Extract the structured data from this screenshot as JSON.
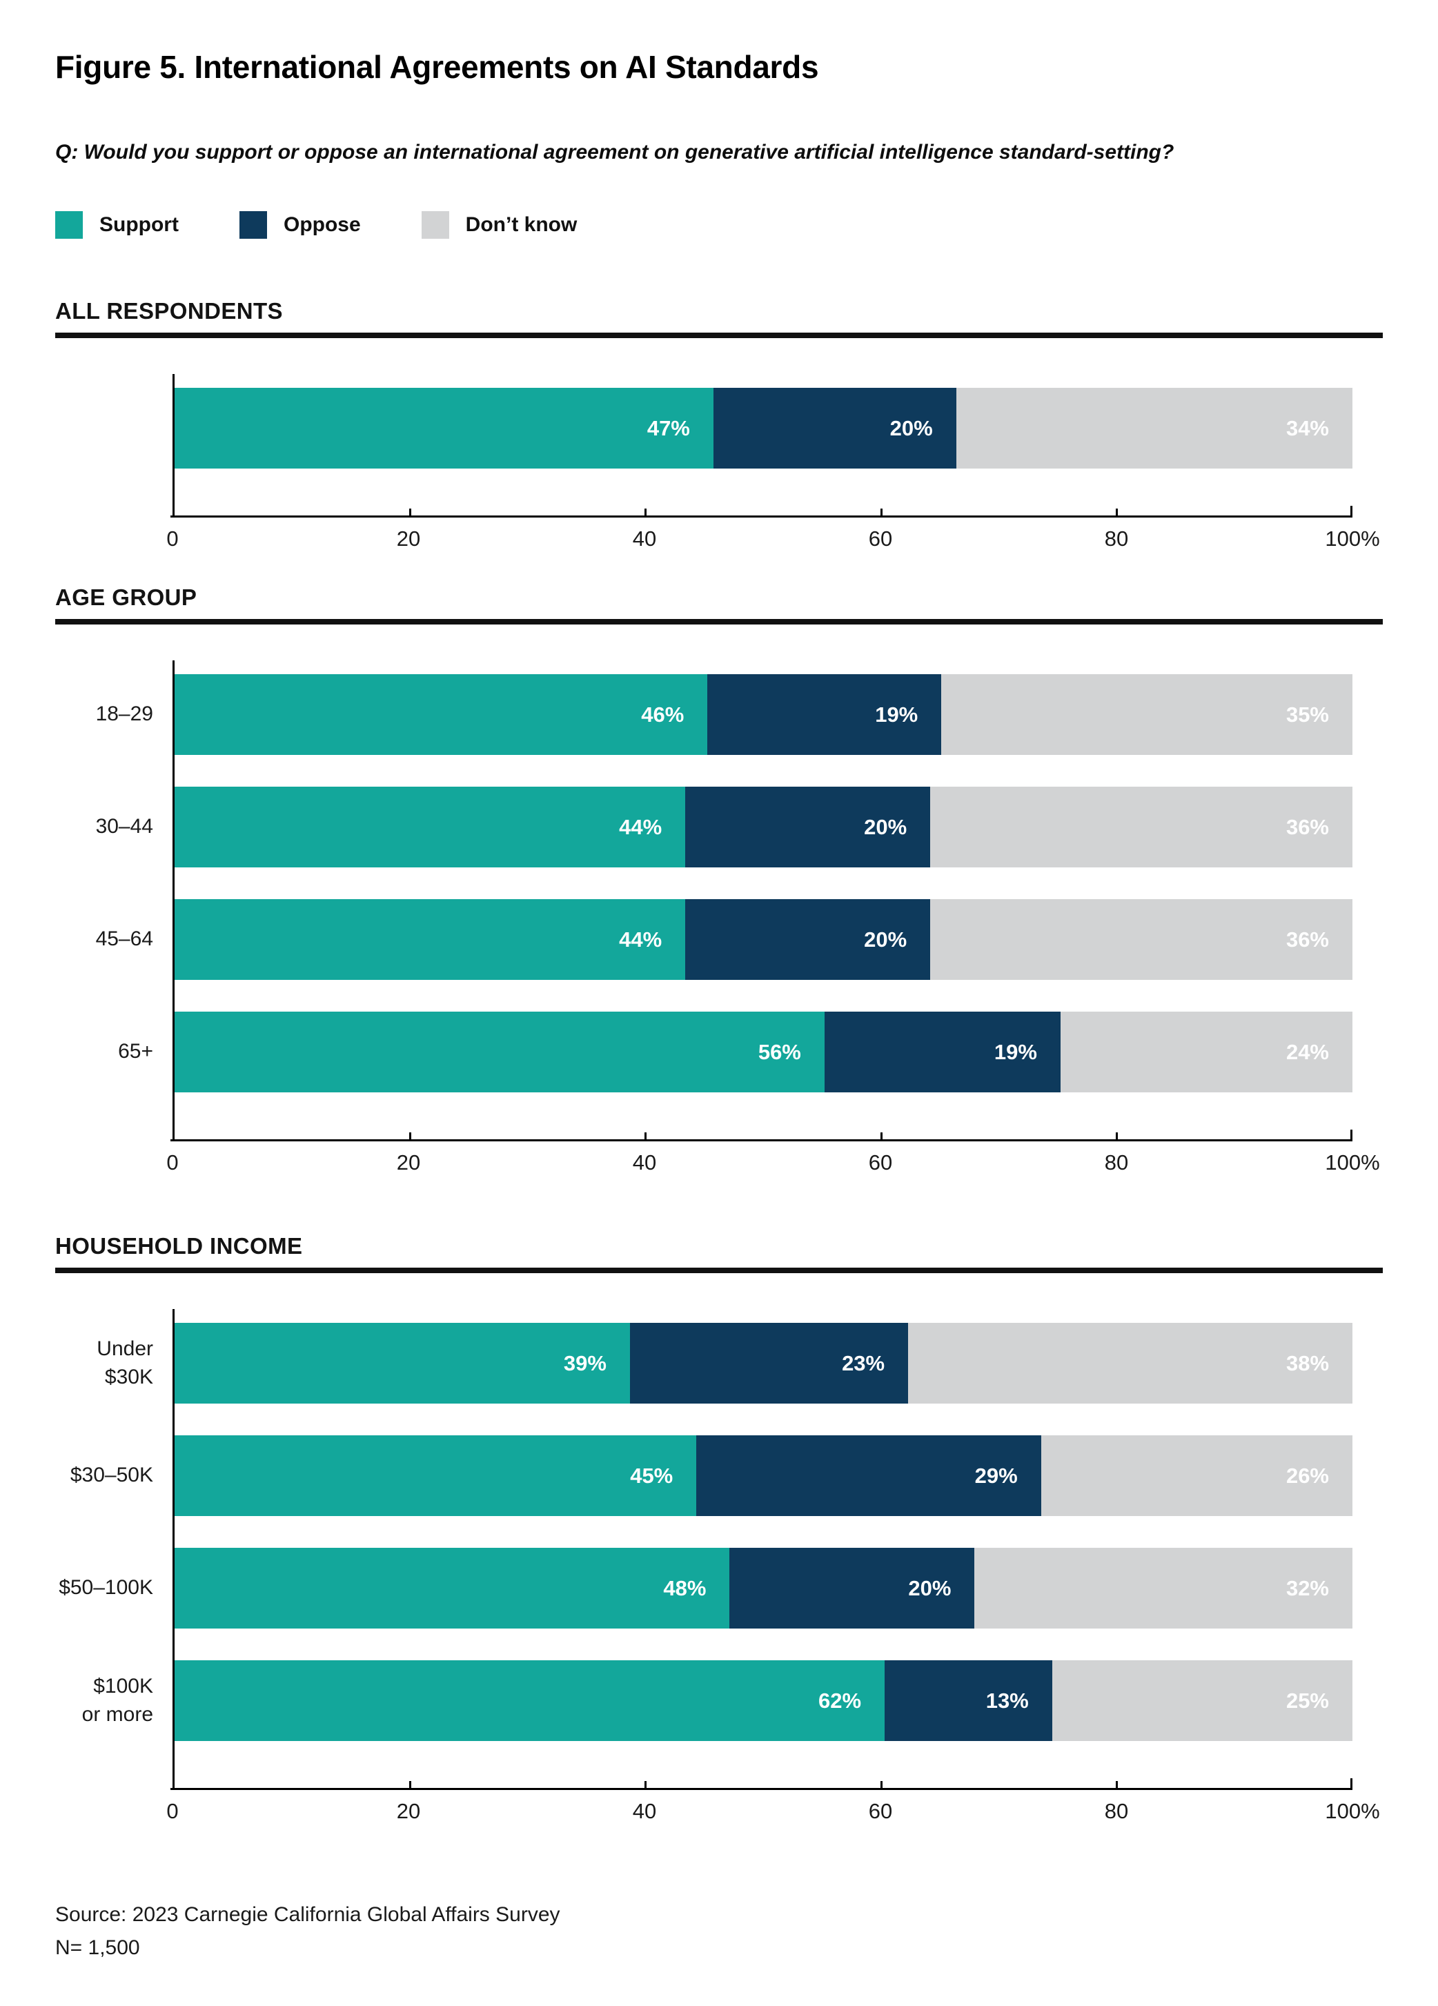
{
  "title": "Figure 5. International Agreements on AI Standards",
  "question": "Q: Would you support or oppose an international agreement on generative artificial intelligence standard-setting?",
  "legend": [
    {
      "name": "Support",
      "label": "Support",
      "color": "#13A79B"
    },
    {
      "name": "Oppose",
      "label": "Oppose",
      "color": "#0E3A5C"
    },
    {
      "name": "Don't know",
      "label": "Don’t know",
      "color": "#D2D3D4"
    }
  ],
  "colors": {
    "support": "#13A79B",
    "oppose": "#0E3A5C",
    "dont_know": "#D2D3D4",
    "axis": "#000000",
    "rule": "#111111",
    "text": "#1a1a1a",
    "bar_label": "#ffffff"
  },
  "axis": {
    "min": 0,
    "max": 100,
    "tick_values": [
      0,
      20,
      40,
      60,
      80,
      100
    ],
    "tick_labels": [
      "0",
      "20",
      "40",
      "60",
      "80",
      "100%"
    ]
  },
  "chart_data": [
    {
      "type": "bar",
      "stacked": true,
      "orientation": "horizontal",
      "section": "ALL RESPONDENTS",
      "categories": [
        ""
      ],
      "series": [
        {
          "name": "Support",
          "values": [
            47
          ]
        },
        {
          "name": "Oppose",
          "values": [
            20
          ]
        },
        {
          "name": "Don't know",
          "values": [
            34
          ]
        }
      ],
      "value_suffix": "%",
      "xlim": [
        0,
        100
      ],
      "grid": false,
      "legend_position": "top"
    },
    {
      "type": "bar",
      "stacked": true,
      "orientation": "horizontal",
      "section": "AGE GROUP",
      "categories": [
        "18–29",
        "30–44",
        "45–64",
        "65+"
      ],
      "series": [
        {
          "name": "Support",
          "values": [
            46,
            44,
            44,
            56
          ]
        },
        {
          "name": "Oppose",
          "values": [
            19,
            20,
            20,
            19
          ]
        },
        {
          "name": "Don't know",
          "values": [
            35,
            36,
            36,
            24
          ]
        }
      ],
      "value_suffix": "%",
      "xlim": [
        0,
        100
      ],
      "grid": false,
      "legend_position": "top"
    },
    {
      "type": "bar",
      "stacked": true,
      "orientation": "horizontal",
      "section": "HOUSEHOLD INCOME",
      "categories": [
        "Under $30K",
        "$30–50K",
        "$50–100K",
        "$100K\nor more"
      ],
      "series": [
        {
          "name": "Support",
          "values": [
            39,
            45,
            48,
            62
          ]
        },
        {
          "name": "Oppose",
          "values": [
            23,
            29,
            20,
            13
          ]
        },
        {
          "name": "Don't know",
          "values": [
            38,
            26,
            32,
            25
          ]
        }
      ],
      "value_suffix": "%",
      "xlim": [
        0,
        100
      ],
      "grid": false,
      "legend_position": "top"
    }
  ],
  "footer": {
    "source": "Source: 2023 Carnegie California Global Affairs Survey",
    "n": "N= 1,500"
  }
}
